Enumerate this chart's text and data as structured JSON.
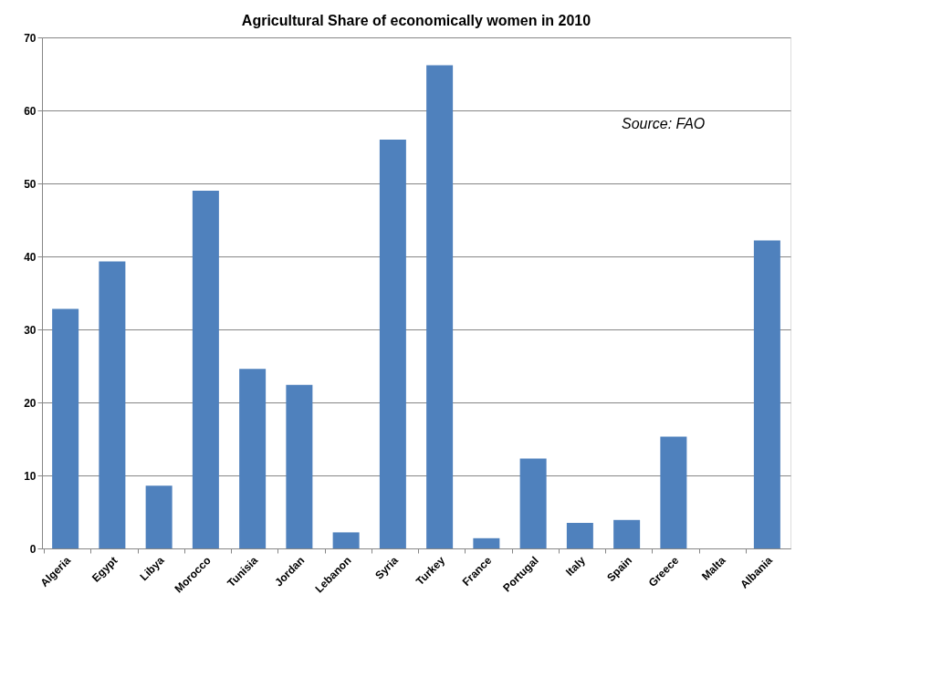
{
  "chart_data": {
    "type": "bar",
    "title": "Agricultural Share of economically women in 2010",
    "categories": [
      "Algeria",
      "Egypt",
      "Libya",
      "Morocco",
      "Tunisia",
      "Jordan",
      "Lebanon",
      "Syria",
      "Turkey",
      "France",
      "Portugal",
      "Italy",
      "Spain",
      "Greece",
      "Malta",
      "Albania"
    ],
    "values": [
      32.8,
      39.3,
      8.6,
      49.0,
      24.6,
      22.4,
      2.2,
      56.0,
      66.2,
      1.4,
      12.3,
      3.5,
      3.9,
      15.3,
      null,
      42.2
    ],
    "color": "#4f81bd",
    "ylim": [
      0,
      70
    ],
    "yticks": [
      0,
      10,
      20,
      30,
      40,
      50,
      60,
      70
    ],
    "grid": "y",
    "annotations": [
      "Source: FAO"
    ]
  }
}
